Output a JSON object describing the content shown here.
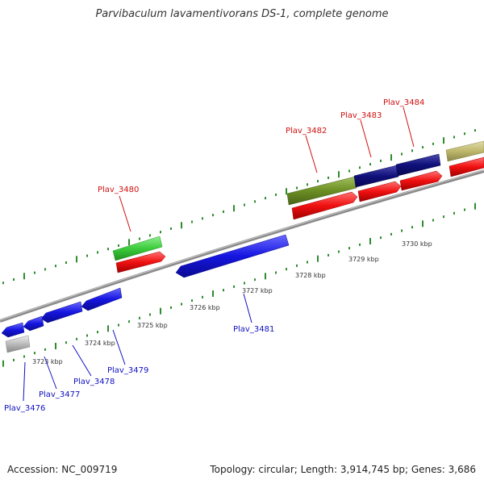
{
  "title": "Parvibaculum lavamentivorans DS-1, complete genome",
  "footer": {
    "accession": "Accession: NC_009719",
    "topology": "Topology: circular; Length: 3,914,745 bp; Genes: 3,686"
  },
  "colors": {
    "backbone": "#8a8a8a",
    "tick": "#2e8b2e",
    "reverse_label": "#1010c0",
    "forward_label": "#d01010",
    "blue_gene": "#1515e0",
    "red_gene": "#f01010",
    "green_gene": "#3ccc3c",
    "olive_gene": "#6b8e23",
    "navy_gene": "#10107a",
    "khaki_gene": "#bdb76b",
    "gray_gene": "#bbbbbb"
  },
  "scale_labels": [
    "3723 kbp",
    "3724 kbp",
    "3725 kbp",
    "3726 kbp",
    "3727 kbp",
    "3728 kbp",
    "3729 kbp",
    "3730 kbp"
  ],
  "gene_labels": {
    "forward": [
      "Plav_3480",
      "Plav_3482",
      "Plav_3483",
      "Plav_3484"
    ],
    "reverse": [
      "Plav_3476",
      "Plav_3477",
      "Plav_3478",
      "Plav_3479",
      "Plav_3481"
    ]
  }
}
